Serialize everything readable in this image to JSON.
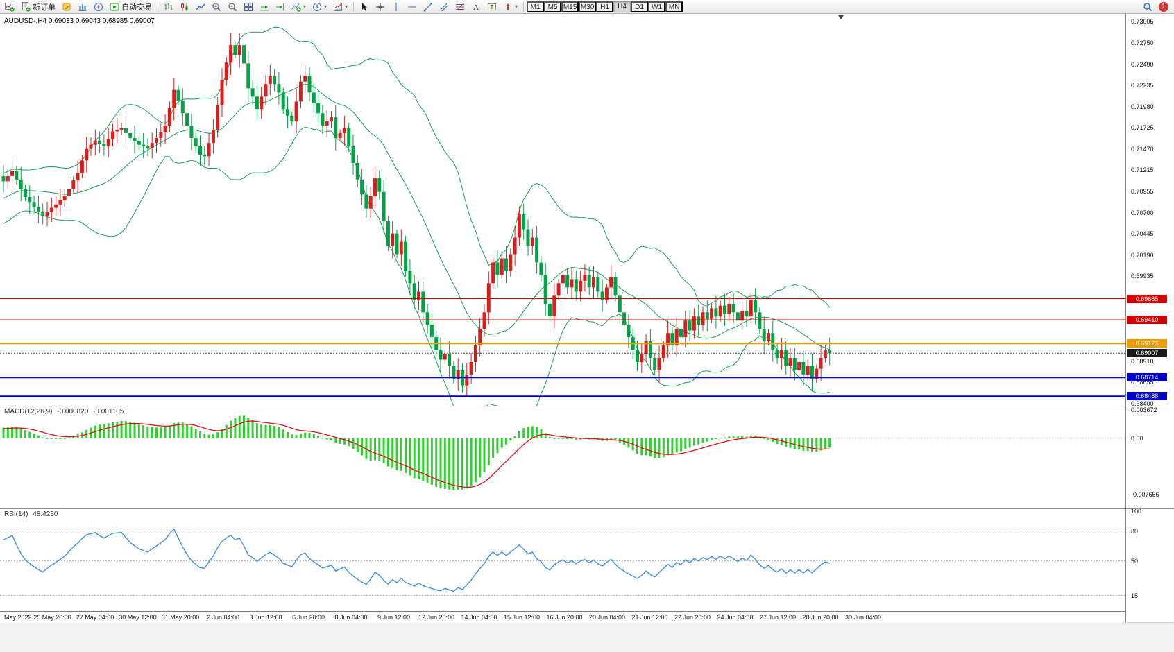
{
  "toolbar": {
    "new_order_label": "新订单",
    "autotrading_label": "自动交易",
    "timeframes": [
      "M1",
      "M5",
      "M15",
      "M30",
      "H1",
      "H4",
      "D1",
      "W1",
      "MN"
    ],
    "active_timeframe": "H4",
    "notification_count": "1",
    "icons": [
      "new-chart-icon",
      "new-order-icon",
      "metaeditor-icon",
      "market-watch-icon",
      "navigator-icon",
      "autotrading-icon",
      "chart-bars-icon",
      "chart-candles-icon",
      "chart-line-icon",
      "zoom-in-icon",
      "zoom-out-icon",
      "tile-windows-icon",
      "auto-scroll-icon",
      "chart-shift-icon",
      "indicators-icon",
      "periods-icon",
      "templates-icon",
      "cursor-icon",
      "crosshair-icon",
      "vertical-line-icon",
      "horizontal-line-icon",
      "trendline-icon",
      "channel-icon",
      "fibonacci-icon",
      "text-icon",
      "text-label-icon",
      "arrows-icon",
      "search-icon"
    ]
  },
  "chart": {
    "title": "AUDUSD-,H4 0.69033 0.69043 0.68985 0.69007",
    "symbol": "AUDUSD-",
    "period": "H4",
    "ohlc": {
      "open": "0.69033",
      "high": "0.69043",
      "low": "0.68985",
      "close": "0.69007"
    },
    "price_axis": {
      "ticks": [
        "0.73005",
        "0.72750",
        "0.72490",
        "0.72235",
        "0.71980",
        "0.71725",
        "0.71470",
        "0.71215",
        "0.70955",
        "0.70700",
        "0.70445",
        "0.70190",
        "0.69935",
        "0.68910",
        "0.68655",
        "0.68400"
      ]
    },
    "price_labels": [
      {
        "text": "0.69665",
        "color": "#d40000"
      },
      {
        "text": "0.69410",
        "color": "#d40000"
      },
      {
        "text": "0.69123",
        "color": "#ef9b00"
      },
      {
        "text": "0.69007",
        "color": "#1a1a1a"
      },
      {
        "text": "0.68714",
        "color": "#0000cc"
      },
      {
        "text": "0.68488",
        "color": "#0000cc"
      }
    ],
    "time_labels": [
      "May 2022",
      "25 May 20:00",
      "27 May 04:00",
      "30 May 12:00",
      "31 May 20:00",
      "2 Jun 04:00",
      "3 Jun 12:00",
      "6 Jun 20:00",
      "8 Jun 04:00",
      "9 Jun 12:00",
      "12 Jun 20:00",
      "14 Jun 04:00",
      "15 Jun 12:00",
      "16 Jun 20:00",
      "20 Jun 04:00",
      "21 Jun 12:00",
      "22 Jun 20:00",
      "24 Jun 04:00",
      "27 Jun 12:00",
      "28 Jun 20:00",
      "30 Jun 04:00"
    ]
  },
  "macd": {
    "label": "MACD(12,26,9)",
    "value_main": "-0.000820",
    "value_signal": "-0.001105",
    "scale": [
      "0.003672",
      "0.00",
      "-0.007656"
    ]
  },
  "rsi": {
    "label": "RSI(14)",
    "value": "48.4230",
    "scale": [
      "100",
      "80",
      "50",
      "15"
    ],
    "levels": [
      80,
      50,
      15
    ]
  },
  "chart_data": {
    "type": "candlestick",
    "symbol": "AUDUSD",
    "timeframe": "H4",
    "title": "AUDUSD-,H4",
    "price_range": {
      "top_tick": 0.73005,
      "bottom_tick": 0.684,
      "tick_step": 0.00255
    },
    "bid": 0.69007,
    "closes": [
      0.7108,
      0.7114,
      0.712,
      0.711,
      0.7099,
      0.7089,
      0.7083,
      0.7077,
      0.7071,
      0.7066,
      0.7071,
      0.7076,
      0.708,
      0.7085,
      0.709,
      0.7099,
      0.7109,
      0.7118,
      0.7133,
      0.7147,
      0.7152,
      0.7157,
      0.7153,
      0.715,
      0.7159,
      0.7168,
      0.717,
      0.7172,
      0.7166,
      0.716,
      0.7156,
      0.7152,
      0.715,
      0.7148,
      0.7154,
      0.716,
      0.7167,
      0.7175,
      0.7196,
      0.7218,
      0.7205,
      0.719,
      0.7175,
      0.716,
      0.715,
      0.714,
      0.7138,
      0.7154,
      0.717,
      0.72,
      0.723,
      0.7251,
      0.7272,
      0.726,
      0.7272,
      0.725,
      0.722,
      0.721,
      0.7195,
      0.721,
      0.7225,
      0.7235,
      0.7225,
      0.7215,
      0.7195,
      0.7187,
      0.718,
      0.7204,
      0.7228,
      0.7235,
      0.7215,
      0.7202,
      0.719,
      0.7175,
      0.718,
      0.7185,
      0.716,
      0.7166,
      0.7172,
      0.715,
      0.713,
      0.711,
      0.7092,
      0.7075,
      0.709,
      0.7112,
      0.7095,
      0.706,
      0.703,
      0.7045,
      0.702,
      0.7035,
      0.7,
      0.6985,
      0.6965,
      0.6975,
      0.695,
      0.6935,
      0.692,
      0.6905,
      0.6893,
      0.69,
      0.6885,
      0.687,
      0.688,
      0.6862,
      0.6875,
      0.689,
      0.691,
      0.693,
      0.695,
      0.6985,
      0.701,
      0.6995,
      0.7015,
      0.7,
      0.702,
      0.704,
      0.7068,
      0.705,
      0.703,
      0.704,
      0.701,
      0.6995,
      0.696,
      0.6945,
      0.697,
      0.6985,
      0.6995,
      0.698,
      0.699,
      0.6975,
      0.6988,
      0.6995,
      0.698,
      0.6992,
      0.6975,
      0.6965,
      0.698,
      0.6992,
      0.697,
      0.695,
      0.6935,
      0.692,
      0.6905,
      0.689,
      0.69,
      0.6915,
      0.6895,
      0.688,
      0.6895,
      0.691,
      0.6925,
      0.691,
      0.693,
      0.692,
      0.694,
      0.6928,
      0.6945,
      0.6935,
      0.695,
      0.6942,
      0.6955,
      0.6945,
      0.6958,
      0.6948,
      0.696,
      0.695,
      0.694,
      0.6952,
      0.6945,
      0.6965,
      0.695,
      0.693,
      0.6915,
      0.6925,
      0.6905,
      0.6895,
      0.6905,
      0.6885,
      0.6895,
      0.688,
      0.689,
      0.6875,
      0.6885,
      0.687,
      0.6882,
      0.6895,
      0.6905,
      0.69007
    ],
    "bollinger": {
      "period": 20,
      "deviation": 2
    },
    "macd_params": {
      "fast": 12,
      "slow": 26,
      "signal": 9
    },
    "rsi_params": {
      "period": 14
    },
    "hlines": [
      {
        "price": 0.69665,
        "color": "#d40000",
        "weight": 1
      },
      {
        "price": 0.6941,
        "color": "#d40000",
        "weight": 1
      },
      {
        "price": 0.69123,
        "color": "#ef9b00",
        "weight": 2
      },
      {
        "price": 0.68714,
        "color": "#0000cc",
        "weight": 2
      },
      {
        "price": 0.68488,
        "color": "#0000cc",
        "weight": 2
      }
    ],
    "colors": {
      "bull": "#d62020",
      "bear": "#00a344",
      "bollinger": "#18a058",
      "macd_hist": "#2fd12f",
      "macd_signal": "#e01010",
      "rsi_line": "#3a8fe8",
      "bid_line": "#555555"
    }
  }
}
